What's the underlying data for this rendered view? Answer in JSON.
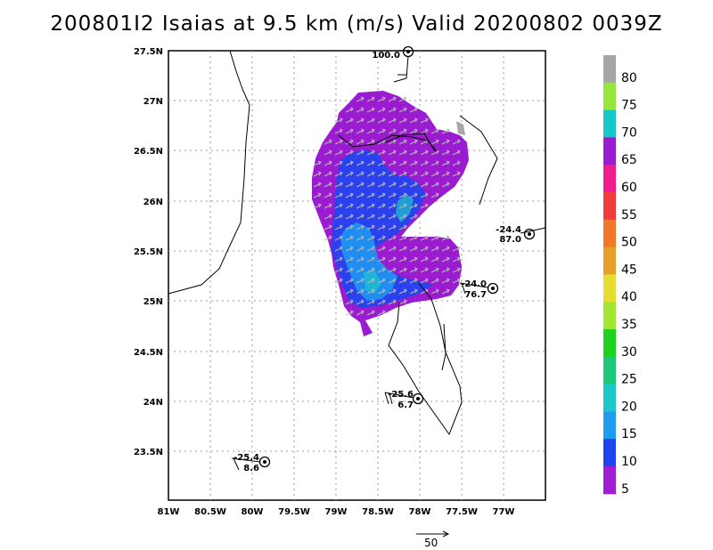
{
  "title": "200801I2 Isaias at 9.5 km (m/s) Valid 20200802 0039Z",
  "map": {
    "lat_ticks": [
      "27.5N",
      "27N",
      "26.5N",
      "26N",
      "25.5N",
      "25N",
      "24.5N",
      "24N",
      "23.5N"
    ],
    "lon_ticks": [
      "81W",
      "80.5W",
      "80W",
      "79.5W",
      "79W",
      "78.5W",
      "78W",
      "77.5W",
      "77W"
    ]
  },
  "colorbar": {
    "labels": [
      "80",
      "75",
      "70",
      "65",
      "60",
      "55",
      "50",
      "45",
      "40",
      "35",
      "30",
      "25",
      "20",
      "15",
      "10",
      "5"
    ],
    "colors": [
      "#a6a6a6",
      "#96e63c",
      "#16c8c8",
      "#9b1cd0",
      "#f01e8c",
      "#f03c3c",
      "#f07828",
      "#e6a028",
      "#e6dc32",
      "#a0e632",
      "#1ed21e",
      "#1ec878",
      "#1ec8c8",
      "#1e9cf0",
      "#1e46f0",
      "#a01ed2"
    ]
  },
  "observations": [
    {
      "id": "obs-top",
      "line1": "100.0",
      "line2": ""
    },
    {
      "id": "obs-east",
      "line1": "-24.4",
      "line2": "87.0"
    },
    {
      "id": "obs-mid",
      "line1": "-24.0",
      "line2": "76.7"
    },
    {
      "id": "obs-south",
      "line1": "-25.6",
      "line2": "6.7"
    },
    {
      "id": "obs-sw",
      "line1": "-25.4",
      "line2": "8.6"
    }
  ],
  "scale_arrow_label": "50"
}
